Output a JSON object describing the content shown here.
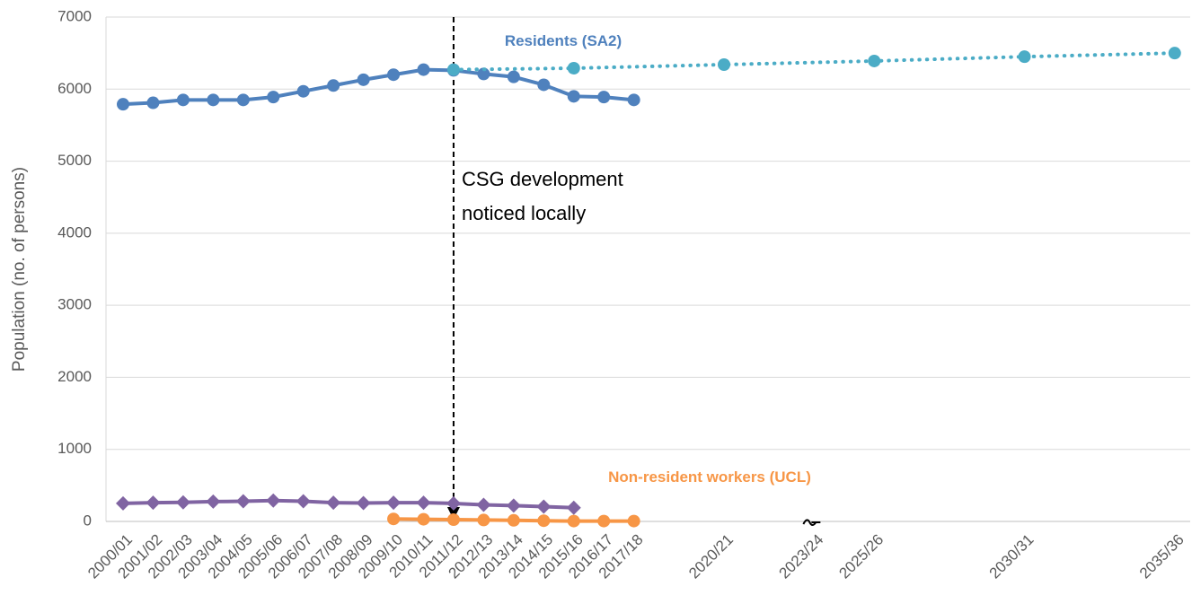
{
  "chart_data": {
    "type": "line",
    "y_label": "Population (no. of persons)",
    "annotation": "CSG development noticed locally",
    "categories": [
      "2000/01",
      "2001/02",
      "2002/03",
      "2003/04",
      "2004/05",
      "2005/06",
      "2006/07",
      "2007/08",
      "2008/09",
      "2009/10",
      "2010/11",
      "2011/12",
      "2012/13",
      "2013/14",
      "2014/15",
      "2015/16",
      "2016/17",
      "2017/18",
      "2020/21",
      "2023/24",
      "2025/26",
      "2030/31",
      "2035/36"
    ],
    "series": [
      {
        "name": "Residents (SA2)",
        "color": "#4f81bd",
        "marker": "circle",
        "style": "solid",
        "values": [
          5790,
          5810,
          5850,
          5850,
          5850,
          5890,
          5970,
          6050,
          6130,
          6200,
          6270,
          6260,
          6210,
          6170,
          6060,
          5900,
          5890,
          5850,
          null,
          null,
          null,
          null,
          null
        ]
      },
      {
        "color": "#4bacc6",
        "marker": "circle",
        "style": "dotted",
        "values": [
          null,
          null,
          null,
          null,
          null,
          null,
          null,
          null,
          null,
          null,
          null,
          6270,
          null,
          null,
          null,
          6290,
          null,
          null,
          6340,
          null,
          6390,
          6450,
          6500
        ]
      },
      {
        "color": "#8064a2",
        "marker": "diamond",
        "style": "solid",
        "values": [
          250,
          260,
          265,
          275,
          280,
          290,
          280,
          260,
          255,
          260,
          260,
          250,
          230,
          220,
          205,
          190,
          null,
          null,
          null,
          null,
          null,
          null,
          null
        ]
      },
      {
        "name": "Non-resident workers (UCL)",
        "color": "#f79646",
        "marker": "circle",
        "style": "solid",
        "values": [
          null,
          null,
          null,
          null,
          null,
          null,
          null,
          null,
          null,
          35,
          30,
          25,
          20,
          15,
          10,
          5,
          5,
          5,
          null,
          null,
          null,
          null,
          null
        ]
      }
    ],
    "ylim": [
      0,
      7000
    ],
    "yticks": [
      0,
      1000,
      2000,
      3000,
      4000,
      5000,
      6000,
      7000
    ],
    "grid": true
  }
}
